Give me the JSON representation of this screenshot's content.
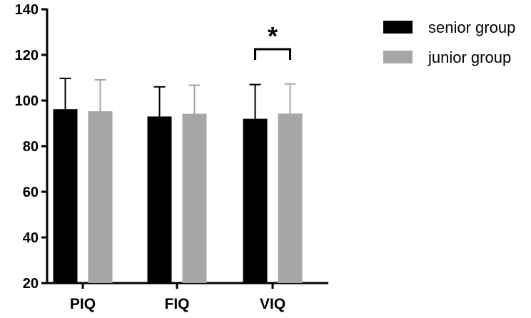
{
  "chart_data": {
    "type": "bar",
    "categories": [
      "PIQ",
      "FIQ",
      "VIQ"
    ],
    "series": [
      {
        "name": "senior group",
        "values": [
          96.2,
          93.0,
          92.0
        ],
        "errors": [
          13.5,
          13.0,
          15.0
        ],
        "color": "#000000"
      },
      {
        "name": "junior group",
        "values": [
          95.3,
          94.2,
          94.3
        ],
        "errors": [
          13.8,
          12.5,
          13.0
        ],
        "color": "#a6a6a6"
      }
    ],
    "ylim": [
      20,
      140
    ],
    "yticks": [
      20,
      40,
      60,
      80,
      100,
      120,
      140
    ],
    "yticklabels": [
      "20",
      "40",
      "60",
      "80",
      "100",
      "120",
      "140"
    ],
    "legend_position": "top-right",
    "annotations": [
      {
        "category": "VIQ",
        "text": "*",
        "type": "significance-bracket"
      }
    ]
  }
}
